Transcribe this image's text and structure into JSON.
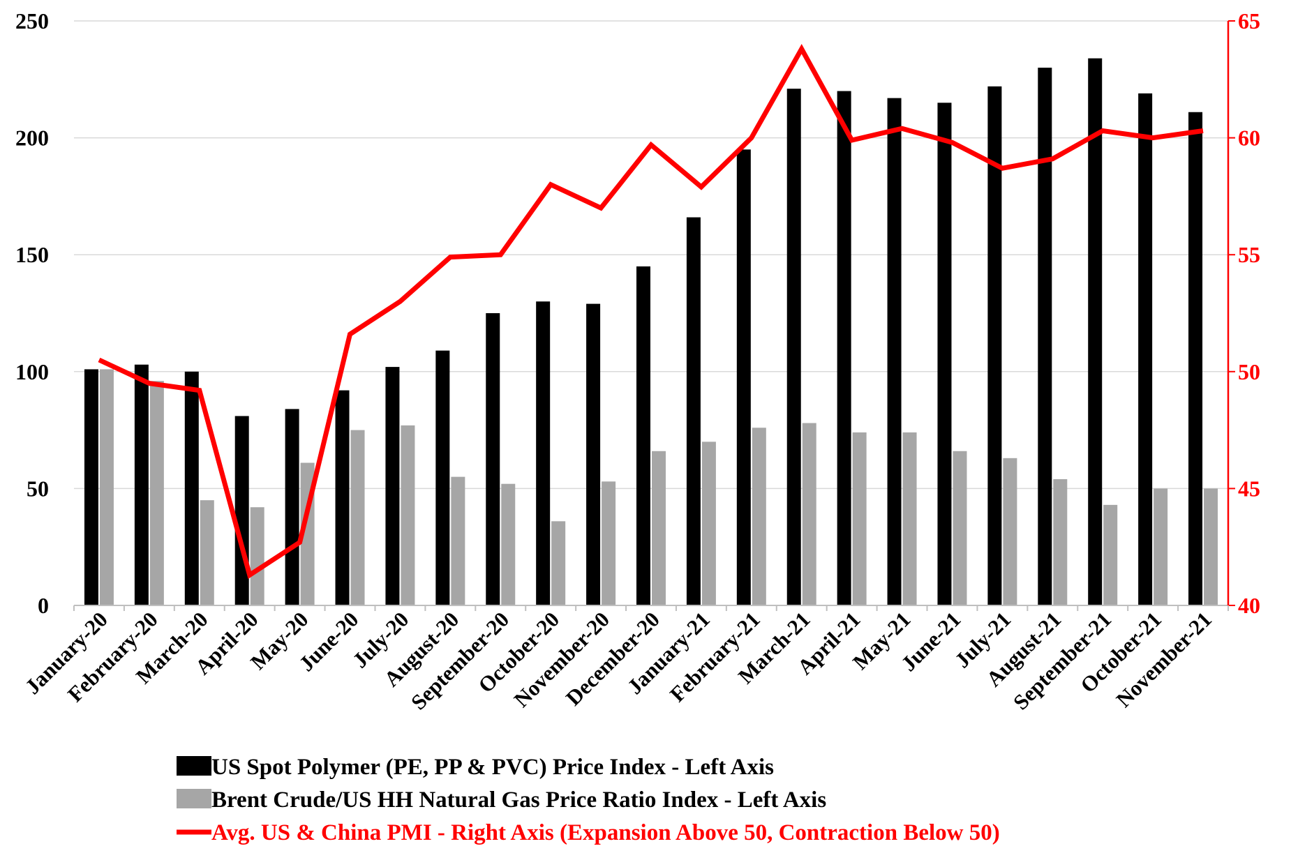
{
  "chart_data": {
    "type": "bar",
    "categories": [
      "January-20",
      "February-20",
      "March-20",
      "April-20",
      "May-20",
      "June-20",
      "July-20",
      "August-20",
      "September-20",
      "October-20",
      "November-20",
      "December-20",
      "January-21",
      "February-21",
      "March-21",
      "April-21",
      "May-21",
      "June-21",
      "July-21",
      "August-21",
      "September-21",
      "October-21",
      "November-21"
    ],
    "series": [
      {
        "name": "US Spot Polymer (PE, PP & PVC) Price Index - Left Axis",
        "kind": "bar",
        "axis": "left",
        "color": "#000000",
        "values": [
          101,
          103,
          100,
          81,
          84,
          92,
          102,
          109,
          125,
          130,
          129,
          145,
          166,
          195,
          221,
          220,
          217,
          215,
          222,
          230,
          234,
          219,
          211
        ]
      },
      {
        "name": "Brent Crude/US HH Natural Gas Price Ratio Index - Left Axis",
        "kind": "bar",
        "axis": "left",
        "color": "#a6a6a6",
        "values": [
          101,
          96,
          45,
          42,
          61,
          75,
          77,
          55,
          52,
          36,
          53,
          66,
          70,
          76,
          78,
          74,
          74,
          66,
          63,
          54,
          43,
          50,
          50
        ]
      },
      {
        "name": "Avg. US & China PMI - Right Axis (Expansion Above 50, Contraction Below 50)",
        "kind": "line",
        "axis": "right",
        "color": "#ff0000",
        "values": [
          50.5,
          49.5,
          49.2,
          41.3,
          42.7,
          51.6,
          53.0,
          54.9,
          55.0,
          58.0,
          57.0,
          59.7,
          57.9,
          60.0,
          63.8,
          59.9,
          60.4,
          59.8,
          58.7,
          59.1,
          60.3,
          60.0,
          60.3
        ]
      }
    ],
    "left_axis": {
      "ylim": [
        0,
        250
      ],
      "ticks": [
        "0",
        "50",
        "100",
        "150",
        "200",
        "250"
      ]
    },
    "right_axis": {
      "ylim": [
        40,
        65
      ],
      "ticks": [
        "40",
        "45",
        "50",
        "55",
        "60",
        "65"
      ],
      "color": "#ff0000"
    },
    "grid": true,
    "legend": "bottom"
  }
}
